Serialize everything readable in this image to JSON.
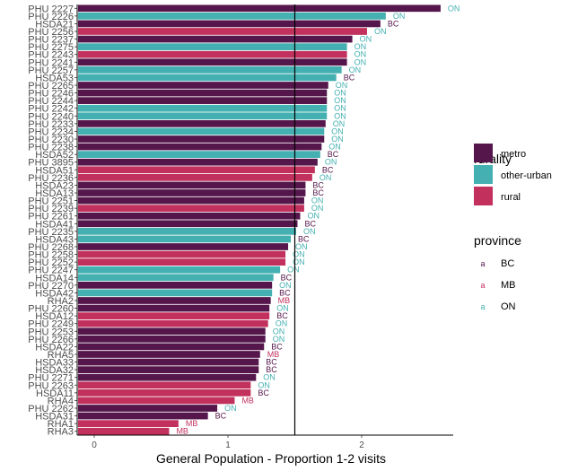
{
  "chart_data": {
    "type": "bar",
    "orientation": "horizontal",
    "title": "",
    "xlabel": "General Population - Proportion 1-2 visits",
    "ylabel": "",
    "xlim": [
      -0.1,
      2.72
    ],
    "xticks": [
      0,
      1,
      2
    ],
    "reference_line_x": 1.5,
    "grid": false,
    "legend_position": "right",
    "legends": [
      {
        "title": "rurality",
        "type": "fill",
        "entries": [
          {
            "name": "metro",
            "color": "#54164b"
          },
          {
            "name": "other-urban",
            "color": "#45b0b1"
          },
          {
            "name": "rural",
            "color": "#c2315e"
          }
        ]
      },
      {
        "title": "province",
        "type": "text",
        "entries": [
          {
            "name": "BC",
            "color": "#54164b"
          },
          {
            "name": "MB",
            "color": "#c2315e"
          },
          {
            "name": "ON",
            "color": "#45b0b1"
          }
        ]
      }
    ],
    "bars": [
      {
        "label": "PHU 2227",
        "value": 2.59,
        "rurality": "metro",
        "province": "ON"
      },
      {
        "label": "PHU 2226",
        "value": 2.18,
        "rurality": "other-urban",
        "province": "ON"
      },
      {
        "label": "HSDA21",
        "value": 2.14,
        "rurality": "metro",
        "province": "BC"
      },
      {
        "label": "PHU 2256",
        "value": 2.04,
        "rurality": "rural",
        "province": "ON"
      },
      {
        "label": "PHU 2237",
        "value": 1.93,
        "rurality": "metro",
        "province": "ON"
      },
      {
        "label": "PHU 2275",
        "value": 1.89,
        "rurality": "other-urban",
        "province": "ON"
      },
      {
        "label": "PHU 2243",
        "value": 1.89,
        "rurality": "rural",
        "province": "ON"
      },
      {
        "label": "PHU 2241",
        "value": 1.89,
        "rurality": "metro",
        "province": "ON"
      },
      {
        "label": "PHU 2257",
        "value": 1.85,
        "rurality": "other-urban",
        "province": "ON"
      },
      {
        "label": "HSDA53",
        "value": 1.81,
        "rurality": "other-urban",
        "province": "BC"
      },
      {
        "label": "PHU 2265",
        "value": 1.75,
        "rurality": "metro",
        "province": "ON"
      },
      {
        "label": "PHU 2246",
        "value": 1.74,
        "rurality": "metro",
        "province": "ON"
      },
      {
        "label": "PHU 2244",
        "value": 1.74,
        "rurality": "metro",
        "province": "ON"
      },
      {
        "label": "PHU 2242",
        "value": 1.74,
        "rurality": "other-urban",
        "province": "ON"
      },
      {
        "label": "PHU 2240",
        "value": 1.74,
        "rurality": "other-urban",
        "province": "ON"
      },
      {
        "label": "PHU 2233",
        "value": 1.73,
        "rurality": "metro",
        "province": "ON"
      },
      {
        "label": "PHU 2234",
        "value": 1.72,
        "rurality": "other-urban",
        "province": "ON"
      },
      {
        "label": "PHU 2230",
        "value": 1.72,
        "rurality": "metro",
        "province": "ON"
      },
      {
        "label": "PHU 2238",
        "value": 1.7,
        "rurality": "metro",
        "province": "ON"
      },
      {
        "label": "HSDA52",
        "value": 1.69,
        "rurality": "other-urban",
        "province": "BC"
      },
      {
        "label": "PHU 3895",
        "value": 1.67,
        "rurality": "metro",
        "province": "ON"
      },
      {
        "label": "HSDA51",
        "value": 1.65,
        "rurality": "rural",
        "province": "BC"
      },
      {
        "label": "PHU 2236",
        "value": 1.63,
        "rurality": "rural",
        "province": "ON"
      },
      {
        "label": "HSDA23",
        "value": 1.58,
        "rurality": "metro",
        "province": "BC"
      },
      {
        "label": "HSDA13",
        "value": 1.58,
        "rurality": "metro",
        "province": "BC"
      },
      {
        "label": "PHU 2251",
        "value": 1.57,
        "rurality": "metro",
        "province": "ON"
      },
      {
        "label": "PHU 2239",
        "value": 1.57,
        "rurality": "rural",
        "province": "ON"
      },
      {
        "label": "PHU 2261",
        "value": 1.54,
        "rurality": "metro",
        "province": "ON"
      },
      {
        "label": "HSDA41",
        "value": 1.52,
        "rurality": "metro",
        "province": "BC"
      },
      {
        "label": "PHU 2235",
        "value": 1.51,
        "rurality": "other-urban",
        "province": "ON"
      },
      {
        "label": "HSDA43",
        "value": 1.47,
        "rurality": "other-urban",
        "province": "BC"
      },
      {
        "label": "PHU 2268",
        "value": 1.45,
        "rurality": "metro",
        "province": "ON"
      },
      {
        "label": "PHU 2258",
        "value": 1.43,
        "rurality": "rural",
        "province": "ON"
      },
      {
        "label": "PHU 2252",
        "value": 1.43,
        "rurality": "rural",
        "province": "ON"
      },
      {
        "label": "PHU 2247",
        "value": 1.39,
        "rurality": "other-urban",
        "province": "ON"
      },
      {
        "label": "HSDA14",
        "value": 1.34,
        "rurality": "other-urban",
        "province": "BC"
      },
      {
        "label": "PHU 2270",
        "value": 1.33,
        "rurality": "metro",
        "province": "ON"
      },
      {
        "label": "HSDA42",
        "value": 1.33,
        "rurality": "other-urban",
        "province": "BC"
      },
      {
        "label": "RHA2",
        "value": 1.32,
        "rurality": "metro",
        "province": "MB"
      },
      {
        "label": "PHU 2260",
        "value": 1.31,
        "rurality": "metro",
        "province": "ON"
      },
      {
        "label": "HSDA12",
        "value": 1.31,
        "rurality": "rural",
        "province": "BC"
      },
      {
        "label": "PHU 2249",
        "value": 1.3,
        "rurality": "rural",
        "province": "ON"
      },
      {
        "label": "PHU 2253",
        "value": 1.28,
        "rurality": "metro",
        "province": "ON"
      },
      {
        "label": "PHU 2266",
        "value": 1.28,
        "rurality": "metro",
        "province": "ON"
      },
      {
        "label": "HSDA22",
        "value": 1.27,
        "rurality": "metro",
        "province": "BC"
      },
      {
        "label": "RHA5",
        "value": 1.24,
        "rurality": "metro",
        "province": "MB"
      },
      {
        "label": "HSDA33",
        "value": 1.23,
        "rurality": "metro",
        "province": "BC"
      },
      {
        "label": "HSDA32",
        "value": 1.23,
        "rurality": "metro",
        "province": "BC"
      },
      {
        "label": "PHU 2271",
        "value": 1.21,
        "rurality": "metro",
        "province": "ON"
      },
      {
        "label": "PHU 2263",
        "value": 1.17,
        "rurality": "rural",
        "province": "ON"
      },
      {
        "label": "HSDA11",
        "value": 1.17,
        "rurality": "rural",
        "province": "BC"
      },
      {
        "label": "RHA4",
        "value": 1.05,
        "rurality": "rural",
        "province": "MB"
      },
      {
        "label": "PHU 2262",
        "value": 0.92,
        "rurality": "metro",
        "province": "ON"
      },
      {
        "label": "HSDA31",
        "value": 0.85,
        "rurality": "metro",
        "province": "BC"
      },
      {
        "label": "RHA1",
        "value": 0.63,
        "rurality": "rural",
        "province": "MB"
      },
      {
        "label": "RHA3",
        "value": 0.56,
        "rurality": "rural",
        "province": "MB"
      }
    ]
  }
}
